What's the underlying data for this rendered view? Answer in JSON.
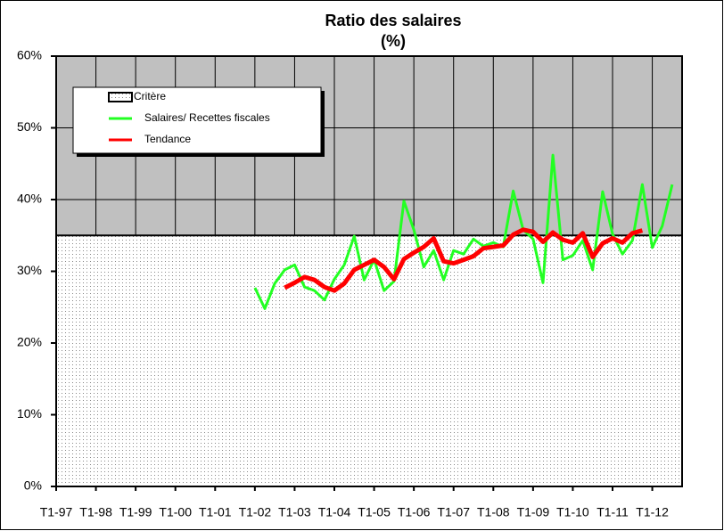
{
  "chart_data": {
    "type": "line",
    "title": "Ratio des salaires",
    "subtitle": "(%)",
    "categories": [
      "T1-97",
      null,
      null,
      null,
      "T1-98",
      null,
      null,
      null,
      "T1-99",
      null,
      null,
      null,
      "T1-00",
      null,
      null,
      null,
      "T1-01",
      null,
      null,
      null,
      "T1-02",
      null,
      null,
      null,
      "T1-03",
      null,
      null,
      null,
      "T1-04",
      null,
      null,
      null,
      "T1-05",
      null,
      null,
      null,
      "T1-06",
      null,
      null,
      null,
      "T1-07",
      null,
      null,
      null,
      "T1-08",
      null,
      null,
      null,
      "T1-09",
      null,
      null,
      null,
      "T1-10",
      null,
      null,
      null,
      "T1-11",
      null,
      null,
      null,
      "T1-12",
      null,
      null
    ],
    "threshold": {
      "name": "Critère",
      "value": 35
    },
    "series": [
      {
        "name": "Salaires/ Recettes fiscales",
        "color": "#22ff22",
        "values": [
          null,
          null,
          null,
          null,
          null,
          null,
          null,
          null,
          null,
          null,
          null,
          null,
          null,
          null,
          null,
          null,
          null,
          null,
          null,
          null,
          27.7,
          24.8,
          28.3,
          30.2,
          30.9,
          27.8,
          27.3,
          26.0,
          28.9,
          30.9,
          34.9,
          28.8,
          31.6,
          27.3,
          28.6,
          39.8,
          35.8,
          30.6,
          32.9,
          28.8,
          32.9,
          32.4,
          34.5,
          33.5,
          34.0,
          33.4,
          41.2,
          35.8,
          34.5,
          28.4,
          46.2,
          31.6,
          32.2,
          34.3,
          30.2,
          41.1,
          35.2,
          32.4,
          34.3,
          42.1,
          33.3,
          36.3,
          42.1
        ]
      },
      {
        "name": "Tendance",
        "color": "#ff0000",
        "values": [
          null,
          null,
          null,
          null,
          null,
          null,
          null,
          null,
          null,
          null,
          null,
          null,
          null,
          null,
          null,
          null,
          null,
          null,
          null,
          null,
          null,
          null,
          null,
          27.7,
          28.4,
          29.2,
          28.8,
          27.8,
          27.3,
          28.3,
          30.2,
          30.9,
          31.6,
          30.6,
          28.9,
          31.7,
          32.6,
          33.4,
          34.6,
          31.4,
          31.1,
          31.6,
          32.1,
          33.2,
          33.4,
          33.6,
          35.1,
          35.8,
          35.5,
          34.1,
          35.4,
          34.4,
          34.0,
          35.3,
          32.0,
          33.9,
          34.6,
          34.0,
          35.3,
          35.7,
          null,
          null,
          null
        ]
      }
    ],
    "ylim": [
      0,
      60
    ],
    "yticks": [
      {
        "value": 0,
        "label": "0%"
      },
      {
        "value": 10,
        "label": "10%"
      },
      {
        "value": 20,
        "label": "20%"
      },
      {
        "value": 30,
        "label": "30%"
      },
      {
        "value": 40,
        "label": "40%"
      },
      {
        "value": 50,
        "label": "50%"
      },
      {
        "value": 60,
        "label": "60%"
      }
    ],
    "grid": true,
    "legend": "upper left",
    "background": "#c0c0c0"
  }
}
